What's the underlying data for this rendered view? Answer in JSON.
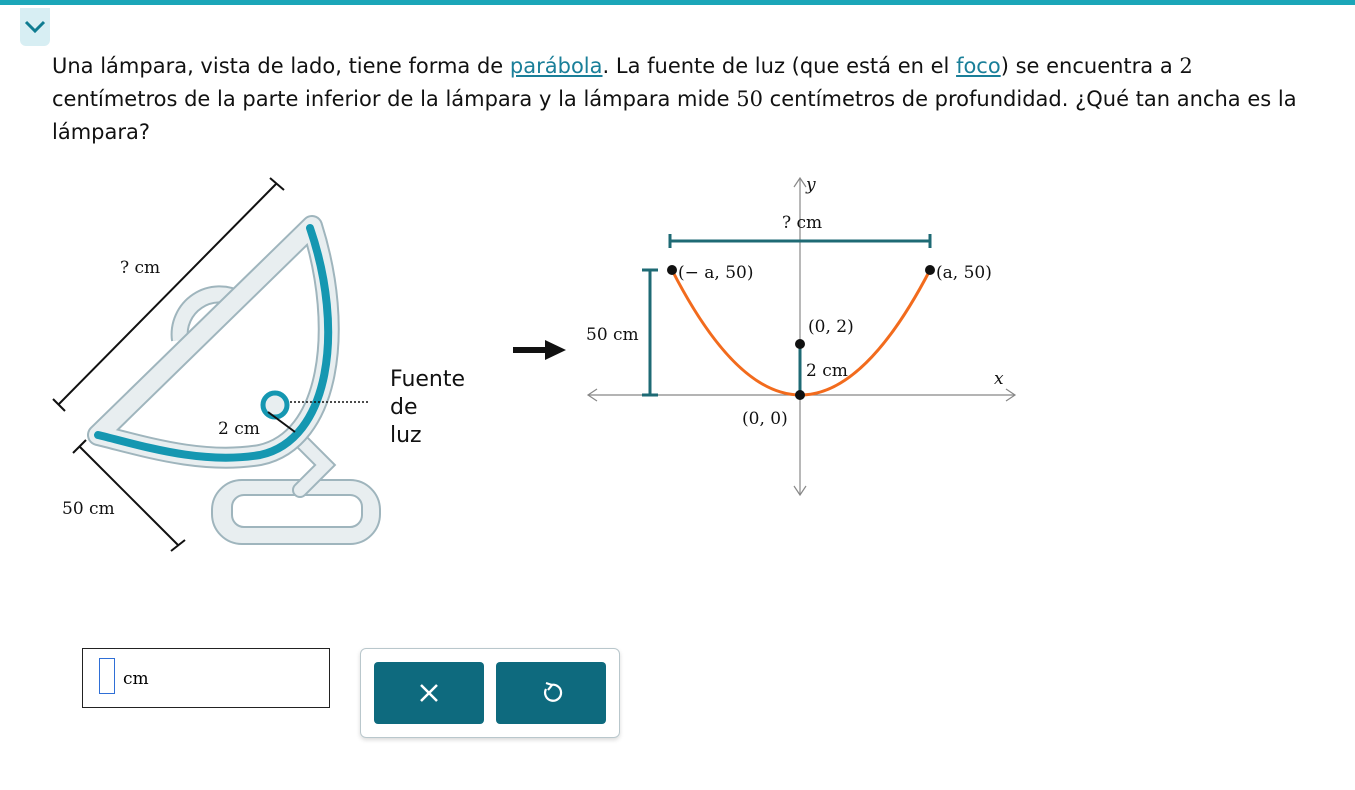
{
  "question": {
    "segments": [
      "Una lámpara, vista de lado, tiene forma de",
      "parábola",
      ". La fuente de luz (que está en el",
      "foco",
      ") se encuentra a",
      "2",
      "centímetros de la parte inferior de la lámpara y la lámpara mide",
      "50",
      "centímetros de profundidad. ¿Qué tan ancha es la lámpara?"
    ]
  },
  "lamp_figure": {
    "width": "? cm",
    "focus_distance": "2 cm",
    "depth": "50 cm",
    "light_source": [
      "Fuente",
      "de",
      "luz"
    ]
  },
  "graph": {
    "axis_x": "x",
    "axis_y": "y",
    "width": "? cm",
    "depth": "50 cm",
    "focus_distance": "2 cm",
    "points": [
      "(− a, 50)",
      "(a, 50)",
      "(0, 2)",
      "(0, 0)"
    ]
  },
  "answer": {
    "unit": "cm"
  }
}
